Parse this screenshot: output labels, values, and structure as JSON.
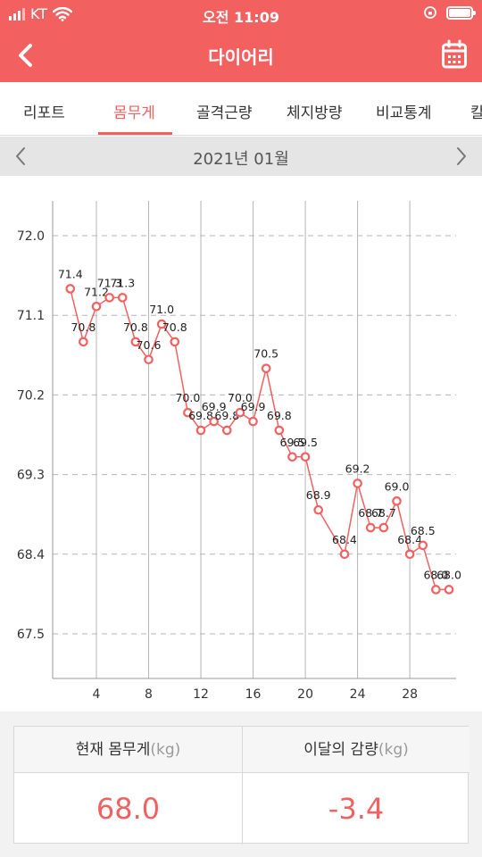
{
  "status": {
    "carrier": "KT",
    "time": "오전 11:09"
  },
  "header": {
    "title": "다이어리"
  },
  "tabs": [
    {
      "label": "리포트",
      "active": false
    },
    {
      "label": "몸무게",
      "active": true
    },
    {
      "label": "골격근량",
      "active": false
    },
    {
      "label": "체지방량",
      "active": false
    },
    {
      "label": "비교통계",
      "active": false
    },
    {
      "label": "칼",
      "active": false
    }
  ],
  "month": {
    "label": "2021년 01월"
  },
  "colors": {
    "accent": "#f26060",
    "grid": "#b5b5b5"
  },
  "chart_data": {
    "type": "line",
    "x": [
      2,
      3,
      4,
      5,
      6,
      7,
      8,
      9,
      10,
      11,
      12,
      13,
      14,
      15,
      16,
      17,
      18,
      19,
      20,
      21,
      23,
      24,
      25,
      26,
      27,
      28,
      29,
      30,
      31
    ],
    "values": [
      71.4,
      70.8,
      71.2,
      71.3,
      71.3,
      70.8,
      70.6,
      71.0,
      70.8,
      70.0,
      69.8,
      69.9,
      69.8,
      70.0,
      69.9,
      70.5,
      69.8,
      69.5,
      69.5,
      68.9,
      68.4,
      69.2,
      68.7,
      68.7,
      69.0,
      68.4,
      68.5,
      68.0,
      68.0
    ],
    "x_ticks": [
      4,
      8,
      12,
      16,
      20,
      24,
      28
    ],
    "y_ticks": [
      72.0,
      71.1,
      70.2,
      69.3,
      68.4,
      67.5
    ],
    "y_tick_labels": [
      "72.0",
      "71.1",
      "70.2",
      "69.3",
      "68.4",
      "67.5"
    ],
    "ylim": [
      67.5,
      72.0
    ],
    "grid": true
  },
  "summary": {
    "current_label": "현재 몸무게",
    "current_unit": "(kg)",
    "current_value": "68.0",
    "change_label": "이달의 감량",
    "change_unit": "(kg)",
    "change_value": "-3.4"
  }
}
